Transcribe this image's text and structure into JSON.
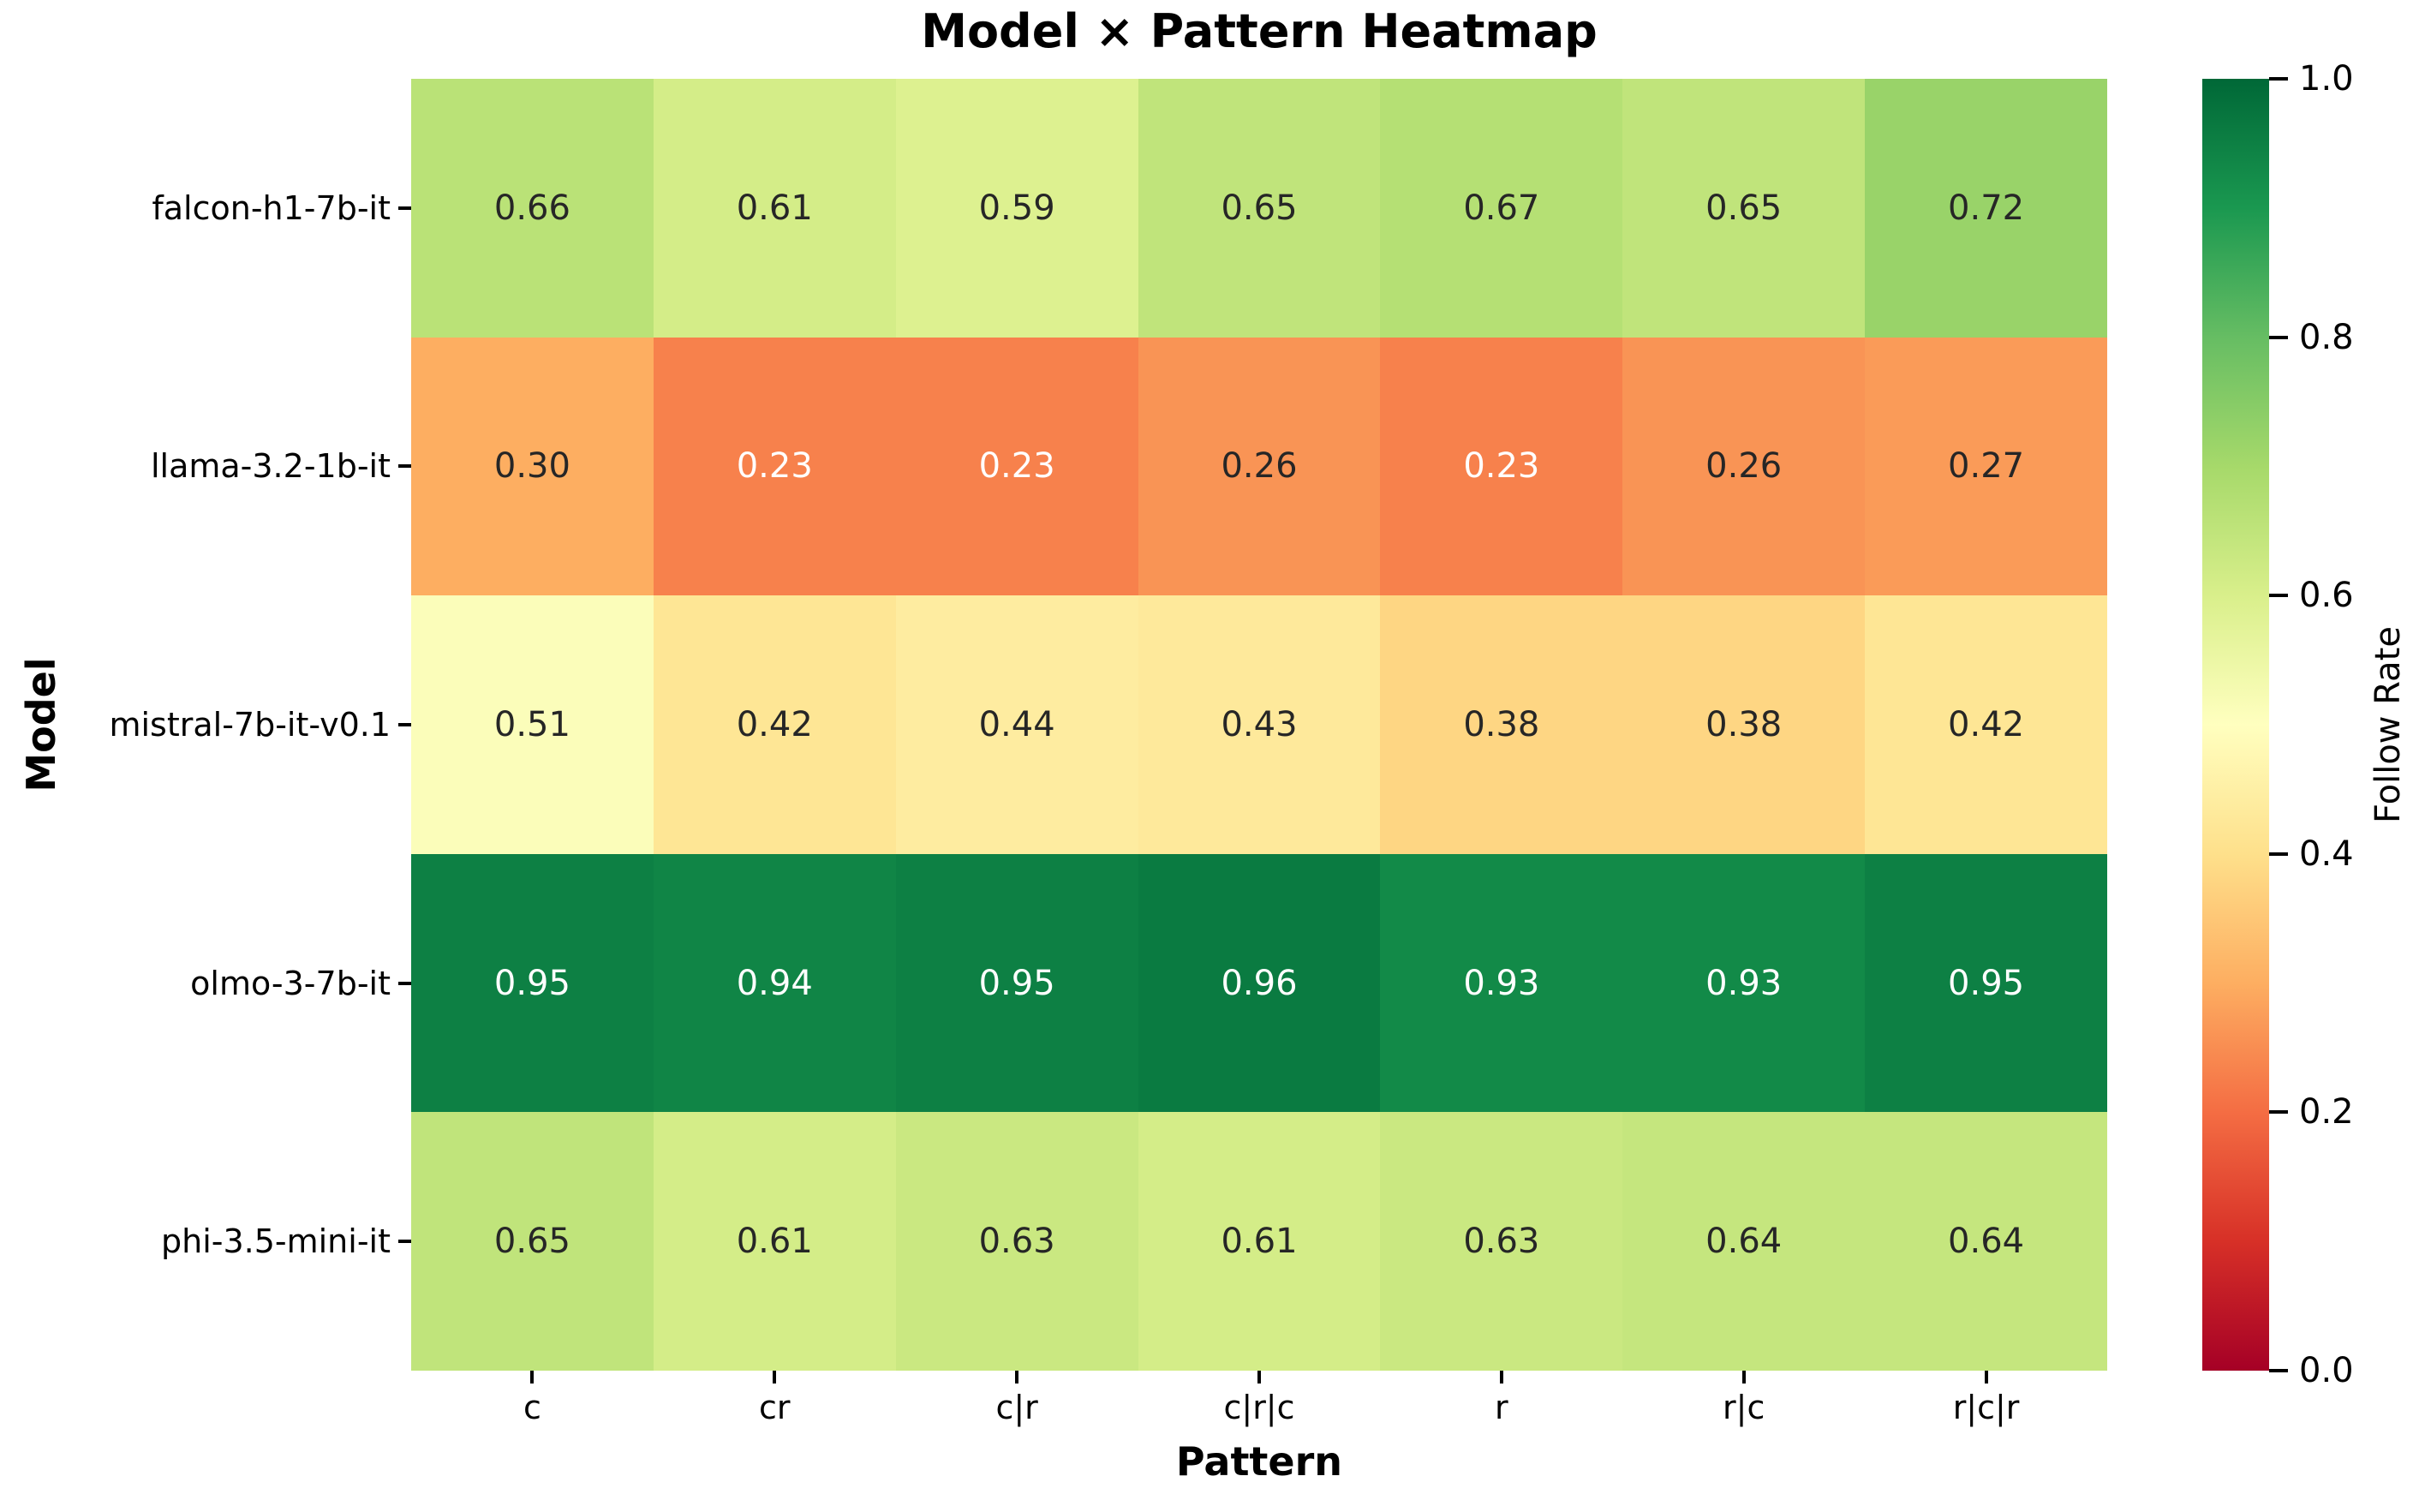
{
  "chart_data": {
    "type": "heatmap",
    "title": "Model × Pattern Heatmap",
    "xlabel": "Pattern",
    "ylabel": "Model",
    "colorbar_label": "Follow Rate",
    "colormap": "RdYlGn",
    "vmin": 0.0,
    "vmax": 1.0,
    "legend_position": "right-colorbar",
    "grid": false,
    "rows": [
      "falcon-h1-7b-it",
      "llama-3.2-1b-it",
      "mistral-7b-it-v0.1",
      "olmo-3-7b-it",
      "phi-3.5-mini-it"
    ],
    "columns": [
      "c",
      "cr",
      "c|r",
      "c|r|c",
      "r",
      "r|c",
      "r|c|r"
    ],
    "values": [
      [
        0.66,
        0.61,
        0.59,
        0.65,
        0.67,
        0.65,
        0.72
      ],
      [
        0.3,
        0.23,
        0.23,
        0.26,
        0.23,
        0.26,
        0.27
      ],
      [
        0.51,
        0.42,
        0.44,
        0.43,
        0.38,
        0.38,
        0.42
      ],
      [
        0.95,
        0.94,
        0.95,
        0.96,
        0.93,
        0.93,
        0.95
      ],
      [
        0.65,
        0.61,
        0.63,
        0.61,
        0.63,
        0.64,
        0.64
      ]
    ],
    "colorbar_ticks": [
      0.0,
      0.2,
      0.4,
      0.6,
      0.8,
      1.0
    ]
  },
  "colors": {
    "background": "#ffffff",
    "text": "#000000",
    "annot_dark": "#262626",
    "annot_light": "#ffffff",
    "cmap_anchors": [
      "#a50026",
      "#d73027",
      "#f46d43",
      "#fdae61",
      "#fee08b",
      "#ffffbf",
      "#d9ef8b",
      "#a6d96a",
      "#66bd63",
      "#1a9850",
      "#006837"
    ]
  }
}
